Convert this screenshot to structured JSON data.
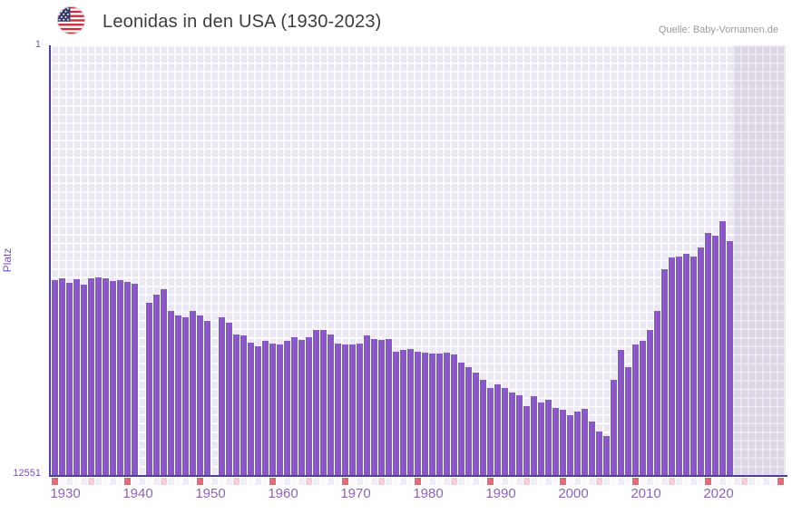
{
  "header": {
    "title": "Leonidas in den USA (1930-2023)",
    "source_credit": "Quelle: Baby-Vornamen.de"
  },
  "chart_data": {
    "type": "bar",
    "title": "Leonidas in den USA (1930-2023)",
    "xlabel": "",
    "ylabel": "Platz",
    "y_axis": {
      "inverted": true,
      "top_tick_label": "1",
      "bottom_tick_label": "12551",
      "min_rank": 1,
      "max_rank": 12551
    },
    "x_axis": {
      "start_year": 1930,
      "end_year_data": 2023,
      "end_year_axis": 2031,
      "tick_labels": [
        "1930",
        "1940",
        "1950",
        "1960",
        "1970",
        "1980",
        "1990",
        "2000",
        "2010",
        "2020"
      ],
      "decade_cells_highlighted": true,
      "future_shaded_from": 2024
    },
    "grid": true,
    "legend": "none",
    "note": "Bars show yearly rank (Platz) of the name Leonidas in the USA; lower rank = taller bar. No bar plotted for 1942 and 1952.",
    "start_year": 1930,
    "values": [
      6860,
      6800,
      6940,
      6830,
      6990,
      6800,
      6780,
      6800,
      6880,
      6860,
      6910,
      6960,
      null,
      7520,
      7280,
      7120,
      7750,
      7880,
      7940,
      7750,
      7880,
      8040,
      null,
      7940,
      8100,
      8440,
      8460,
      8680,
      8780,
      8620,
      8700,
      8750,
      8620,
      8520,
      8600,
      8520,
      8310,
      8310,
      8440,
      8700,
      8750,
      8730,
      8700,
      8460,
      8570,
      8600,
      8570,
      8940,
      8910,
      8860,
      8940,
      8970,
      8990,
      8990,
      8970,
      9040,
      9260,
      9410,
      9570,
      9780,
      10020,
      9890,
      10020,
      10130,
      10230,
      10550,
      10260,
      10420,
      10360,
      10600,
      10650,
      10810,
      10710,
      10630,
      11000,
      11290,
      11400,
      9760,
      8910,
      9390,
      8750,
      8620,
      8310,
      7750,
      6540,
      6200,
      6170,
      6090,
      6170,
      5910,
      5480,
      5560,
      5140,
      5720
    ],
    "colors": {
      "bar": "#8b58c7",
      "plot_background": "#ebe7f3",
      "gridline": "#ffffff",
      "axis_line": "#533a9b",
      "future_band_overlay": "rgba(90,70,130,0.10)",
      "decade_cell": "#dc6e7c",
      "half_decade_cell": "#f3ced8",
      "strip_cell_even": "#f1edf8",
      "strip_cell_odd": "#faf8fd",
      "x_tick_text": "#8a63b3",
      "y_tick_text": "#7b52b5",
      "title_text": "#3d3d3d",
      "source_text": "#9b9b9b"
    }
  }
}
